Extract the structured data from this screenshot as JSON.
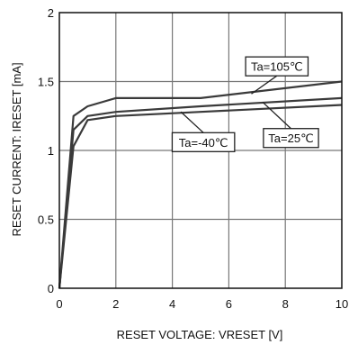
{
  "chart_data": {
    "type": "line",
    "xlabel": "RESET VOLTAGE: VRESET [V]",
    "ylabel": "RESET CURRENT: IRESET [mA]",
    "xlim": [
      0,
      10
    ],
    "ylim": [
      0,
      2
    ],
    "x_ticks": [
      0,
      2,
      4,
      6,
      8,
      10
    ],
    "x_tick_labels": [
      "0",
      "2",
      "4",
      "6",
      "8",
      "10"
    ],
    "y_ticks": [
      0,
      0.5,
      1,
      1.5,
      2
    ],
    "y_tick_labels": [
      "0",
      "0.5",
      "1",
      "1.5",
      "2"
    ],
    "grid": true,
    "series": [
      {
        "name": "Ta=105℃",
        "points": [
          [
            0,
            0
          ],
          [
            0.5,
            1.25
          ],
          [
            1,
            1.32
          ],
          [
            2,
            1.38
          ],
          [
            5,
            1.38
          ],
          [
            10,
            1.5
          ]
        ]
      },
      {
        "name": "Ta=25℃",
        "points": [
          [
            0,
            0
          ],
          [
            0.5,
            1.15
          ],
          [
            1,
            1.25
          ],
          [
            2,
            1.28
          ],
          [
            5,
            1.32
          ],
          [
            10,
            1.38
          ]
        ]
      },
      {
        "name": "Ta=-40℃",
        "points": [
          [
            0,
            0
          ],
          [
            0.5,
            1.03
          ],
          [
            1,
            1.22
          ],
          [
            2,
            1.25
          ],
          [
            5,
            1.28
          ],
          [
            10,
            1.33
          ]
        ]
      }
    ],
    "annotations": [
      {
        "text": "Ta=105℃",
        "series": 0,
        "box_at": [
          7.7,
          1.61
        ],
        "arrow_to": [
          6.8,
          1.41
        ]
      },
      {
        "text": "Ta=25℃",
        "series": 1,
        "box_at": [
          8.2,
          1.09
        ],
        "arrow_to": [
          7.2,
          1.35
        ]
      },
      {
        "text": "Ta=-40℃",
        "series": 2,
        "box_at": [
          5.1,
          1.06
        ],
        "arrow_to": [
          4.3,
          1.28
        ]
      }
    ],
    "colors": {
      "line": "#3a3a3a",
      "grid": "#777777",
      "frame": "#111111"
    }
  }
}
